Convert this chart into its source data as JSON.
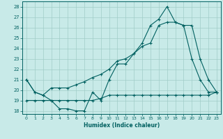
{
  "xlabel": "Humidex (Indice chaleur)",
  "xlim": [
    -0.5,
    23.5
  ],
  "ylim": [
    17.7,
    28.5
  ],
  "yticks": [
    18,
    19,
    20,
    21,
    22,
    23,
    24,
    25,
    26,
    27,
    28
  ],
  "xticks": [
    0,
    1,
    2,
    3,
    4,
    5,
    6,
    7,
    8,
    9,
    10,
    11,
    12,
    13,
    14,
    15,
    16,
    17,
    18,
    19,
    20,
    21,
    22,
    23
  ],
  "bg_color": "#c8eae8",
  "grid_color": "#a0ccc8",
  "line_color": "#006060",
  "line1_y": [
    21.0,
    19.8,
    19.5,
    19.0,
    18.2,
    18.2,
    18.0,
    18.0,
    19.8,
    19.0,
    21.0,
    22.5,
    22.5,
    23.5,
    24.5,
    26.2,
    26.8,
    28.0,
    26.5,
    26.2,
    23.0,
    21.0,
    19.8,
    19.8
  ],
  "line2_y": [
    21.0,
    19.8,
    19.5,
    20.2,
    20.2,
    20.2,
    20.5,
    20.8,
    21.2,
    21.5,
    22.0,
    22.8,
    23.0,
    23.5,
    24.2,
    24.5,
    26.2,
    26.5,
    26.5,
    26.2,
    26.2,
    23.0,
    21.0,
    19.8
  ],
  "line3_y": [
    19.0,
    19.0,
    19.0,
    19.0,
    19.0,
    19.0,
    19.0,
    19.0,
    19.0,
    19.2,
    19.5,
    19.5,
    19.5,
    19.5,
    19.5,
    19.5,
    19.5,
    19.5,
    19.5,
    19.5,
    19.5,
    19.5,
    19.5,
    19.8
  ]
}
